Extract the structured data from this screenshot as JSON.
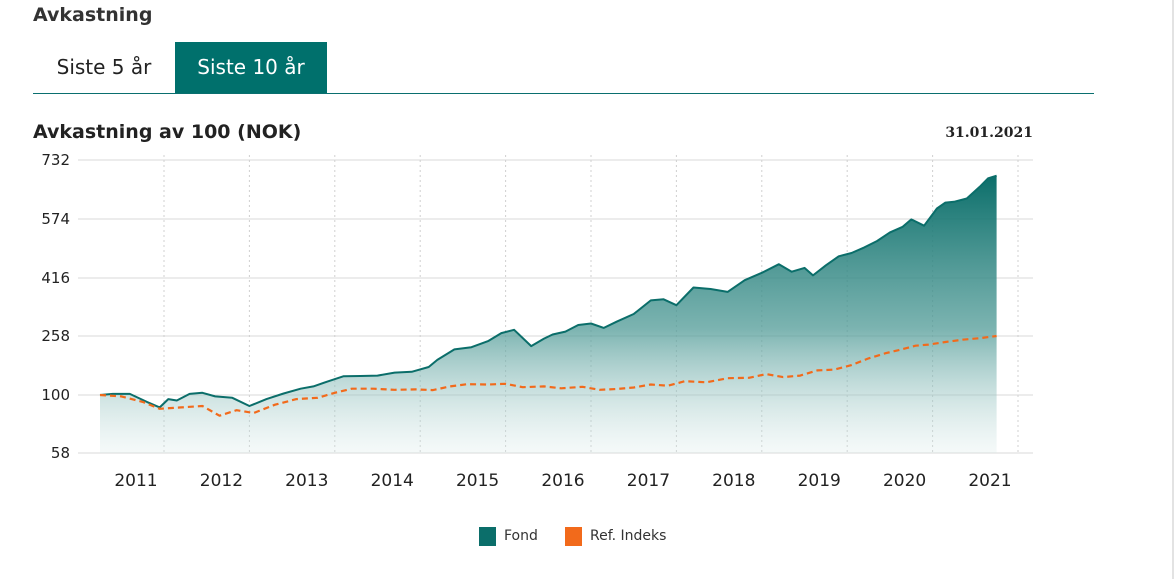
{
  "header": {
    "title": "Avkastning"
  },
  "tabs": [
    {
      "label": "Siste 5 år",
      "active": false
    },
    {
      "label": "Siste 10 år",
      "active": true
    }
  ],
  "chart_data": {
    "type": "area",
    "title": "Avkastning av 100 (NOK)",
    "date": "31.01.2021",
    "ylim": [
      58,
      732
    ],
    "y_ticks": [
      {
        "value": 732,
        "label": "732"
      },
      {
        "value": 574,
        "label": "574"
      },
      {
        "value": 416,
        "label": "416"
      },
      {
        "value": 258,
        "label": "258"
      },
      {
        "value": 100,
        "label": "100"
      },
      {
        "value": 58,
        "label": "58"
      }
    ],
    "xlim": [
      2010.25,
      2021.5
    ],
    "x_ticks": [
      {
        "value": 2011.0,
        "label": "2011"
      },
      {
        "value": 2012.0,
        "label": "2012"
      },
      {
        "value": 2013.0,
        "label": "2013"
      },
      {
        "value": 2014.0,
        "label": "2014"
      },
      {
        "value": 2015.0,
        "label": "2015"
      },
      {
        "value": 2016.0,
        "label": "2016"
      },
      {
        "value": 2017.0,
        "label": "2017"
      },
      {
        "value": 2018.0,
        "label": "2018"
      },
      {
        "value": 2019.0,
        "label": "2019"
      },
      {
        "value": 2020.0,
        "label": "2020"
      },
      {
        "value": 2021.0,
        "label": "2021"
      }
    ],
    "series": [
      {
        "name": "Fond",
        "color": "#0b6e6a",
        "style": "solid",
        "fill": true,
        "x": [
          2010.25,
          2010.4,
          2010.6,
          2010.8,
          2010.95,
          2011.05,
          2011.15,
          2011.3,
          2011.45,
          2011.6,
          2011.8,
          2012.0,
          2012.2,
          2012.4,
          2012.6,
          2012.75,
          2012.9,
          2013.1,
          2013.3,
          2013.5,
          2013.7,
          2013.9,
          2014.1,
          2014.2,
          2014.4,
          2014.6,
          2014.8,
          2014.95,
          2015.1,
          2015.3,
          2015.45,
          2015.55,
          2015.7,
          2015.85,
          2016.0,
          2016.15,
          2016.3,
          2016.5,
          2016.7,
          2016.85,
          2017.0,
          2017.2,
          2017.4,
          2017.6,
          2017.8,
          2018.0,
          2018.2,
          2018.35,
          2018.5,
          2018.6,
          2018.75,
          2018.9,
          2019.05,
          2019.2,
          2019.35,
          2019.5,
          2019.65,
          2019.75,
          2019.9,
          2020.05,
          2020.15,
          2020.25,
          2020.4,
          2020.55,
          2020.65,
          2020.75
        ],
        "values": [
          100,
          103,
          103,
          95,
          91,
          97,
          96,
          103,
          106,
          99,
          98,
          92,
          97,
          104,
          117,
          123,
          135,
          150,
          151,
          152,
          160,
          162,
          175,
          194,
          222,
          228,
          245,
          266,
          275,
          231,
          251,
          262,
          270,
          288,
          292,
          280,
          297,
          318,
          355,
          358,
          342,
          390,
          386,
          378,
          410,
          430,
          453,
          433,
          443,
          423,
          450,
          474,
          483,
          498,
          515,
          538,
          553,
          573,
          556,
          602,
          618,
          620,
          629,
          660,
          683,
          690
        ]
      },
      {
        "name": "Ref. Indeks",
        "color": "#f26a1b",
        "style": "dashed",
        "fill": false,
        "x": [
          2010.25,
          2010.5,
          2010.75,
          2010.95,
          2011.2,
          2011.45,
          2011.65,
          2011.85,
          2012.05,
          2012.3,
          2012.55,
          2012.8,
          2013.0,
          2013.2,
          2013.45,
          2013.7,
          2013.95,
          2014.15,
          2014.35,
          2014.55,
          2014.8,
          2015.0,
          2015.2,
          2015.45,
          2015.65,
          2015.9,
          2016.1,
          2016.3,
          2016.5,
          2016.7,
          2016.9,
          2017.1,
          2017.35,
          2017.6,
          2017.85,
          2018.05,
          2018.25,
          2018.45,
          2018.65,
          2018.85,
          2019.05,
          2019.25,
          2019.45,
          2019.6,
          2019.8,
          2019.95,
          2020.15,
          2020.35,
          2020.55,
          2020.75
        ],
        "values": [
          100,
          99,
          95,
          90,
          91,
          92,
          85,
          89,
          87,
          93,
          97,
          98,
          106,
          117,
          117,
          114,
          115,
          113,
          123,
          129,
          128,
          130,
          121,
          123,
          118,
          122,
          114,
          116,
          120,
          128,
          125,
          137,
          134,
          145,
          146,
          156,
          148,
          152,
          166,
          168,
          180,
          198,
          212,
          220,
          232,
          235,
          242,
          248,
          252,
          258
        ]
      }
    ],
    "legend": [
      {
        "name": "Fond",
        "color": "#0b6e6a"
      },
      {
        "name": "Ref. Indeks",
        "color": "#f26a1b"
      }
    ]
  }
}
